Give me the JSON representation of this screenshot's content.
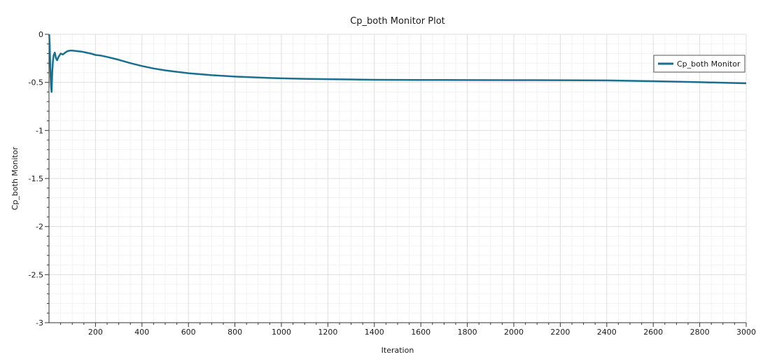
{
  "chart_data": {
    "type": "line",
    "title": "Cp_both Monitor Plot",
    "xlabel": "Iteration",
    "ylabel": "Cp_both Monitor",
    "xlim": [
      0,
      3000
    ],
    "ylim": [
      -3,
      0
    ],
    "x_ticks": [
      200,
      400,
      600,
      800,
      1000,
      1200,
      1400,
      1600,
      1800,
      2000,
      2200,
      2400,
      2600,
      2800,
      3000
    ],
    "x_tick_labels": [
      "200",
      "400",
      "600",
      "800",
      "1000",
      "1200",
      "1400",
      "1600",
      "1800",
      "2000",
      "2200",
      "2400",
      "2600",
      "2800",
      "3000"
    ],
    "y_ticks": [
      0,
      -0.5,
      -1,
      -1.5,
      -2,
      -2.5,
      -3
    ],
    "y_tick_labels": [
      "0",
      "-0.5",
      "-1",
      "-1.5",
      "-2",
      "-2.5",
      "-3"
    ],
    "grid": true,
    "legend_position": "top-right",
    "series": [
      {
        "name": "Cp_both Monitor",
        "color": "#1a6e8e",
        "x": [
          1,
          3,
          5,
          7,
          9,
          11,
          14,
          17,
          20,
          25,
          30,
          35,
          40,
          50,
          60,
          70,
          80,
          90,
          100,
          120,
          140,
          160,
          180,
          200,
          220,
          250,
          300,
          350,
          400,
          450,
          500,
          550,
          600,
          700,
          800,
          900,
          1000,
          1100,
          1200,
          1300,
          1400,
          1600,
          1800,
          2000,
          2200,
          2400,
          2600,
          2800,
          3000
        ],
        "y": [
          0.0,
          -0.1,
          -0.3,
          -0.45,
          -0.55,
          -0.6,
          -0.4,
          -0.28,
          -0.22,
          -0.19,
          -0.25,
          -0.27,
          -0.24,
          -0.2,
          -0.21,
          -0.19,
          -0.175,
          -0.17,
          -0.17,
          -0.175,
          -0.18,
          -0.19,
          -0.2,
          -0.215,
          -0.22,
          -0.235,
          -0.265,
          -0.3,
          -0.33,
          -0.355,
          -0.375,
          -0.39,
          -0.405,
          -0.425,
          -0.44,
          -0.45,
          -0.458,
          -0.463,
          -0.467,
          -0.47,
          -0.473,
          -0.475,
          -0.476,
          -0.477,
          -0.478,
          -0.48,
          -0.488,
          -0.498,
          -0.51
        ]
      }
    ]
  }
}
